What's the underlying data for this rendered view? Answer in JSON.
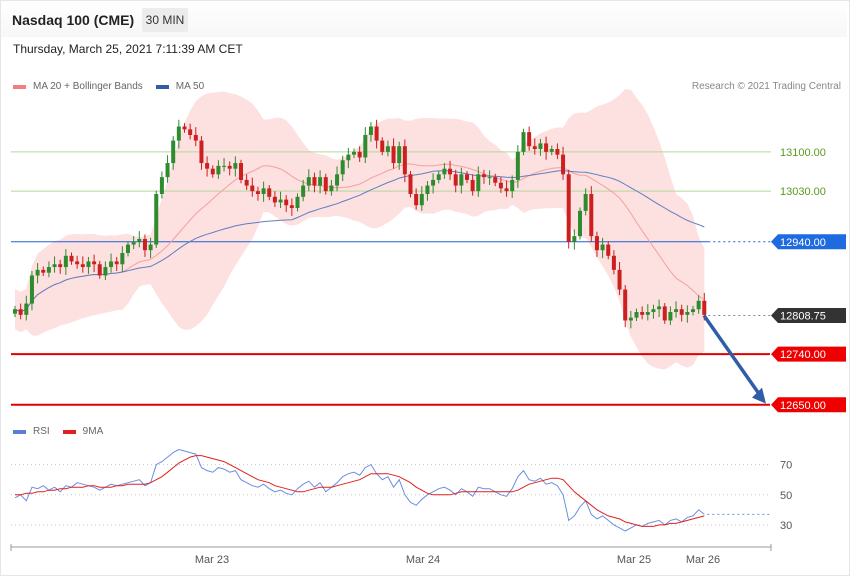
{
  "header": {
    "title": "Nasdaq 100 (CME)",
    "interval": "30 MIN",
    "timestamp": "Thursday, March 25, 2021 7:11:39 AM CET"
  },
  "legend": {
    "price": [
      {
        "name": "MA 20 + Bollinger Bands",
        "color": "#f08080"
      },
      {
        "name": "MA 50",
        "color": "#2f5da8"
      }
    ],
    "rsi": [
      {
        "name": "RSI",
        "color": "#5b7fd6"
      },
      {
        "name": "9MA",
        "color": "#e02020"
      }
    ]
  },
  "credit": "Research © 2021 Trading Central",
  "colors": {
    "up_candle": "#2e8b2e",
    "down_candle": "#cc1f1f",
    "band_fill": "#fde0e0",
    "target_line": "#b5d69a",
    "support_line": "#e00000",
    "pivot_line": "#2060d0",
    "arrow": "#2f5da8"
  },
  "chart_data": [
    {
      "type": "candlestick",
      "panel": "price",
      "x_labels": [
        "Mar 23",
        "Mar 24",
        "Mar 25",
        "Mar 26"
      ],
      "y_range": [
        12630,
        13210
      ],
      "levels": [
        {
          "value": 13100.0,
          "label": "13100.00",
          "kind": "target"
        },
        {
          "value": 13030.0,
          "label": "13030.00",
          "kind": "target"
        },
        {
          "value": 12940.0,
          "label": "12940.00",
          "kind": "pivot"
        },
        {
          "value": 12808.75,
          "label": "12808.75",
          "kind": "last"
        },
        {
          "value": 12740.0,
          "label": "12740.00",
          "kind": "support"
        },
        {
          "value": 12650.0,
          "label": "12650.00",
          "kind": "support"
        }
      ],
      "closes": [
        12820,
        12810,
        12830,
        12880,
        12890,
        12885,
        12895,
        12900,
        12895,
        12915,
        12905,
        12900,
        12895,
        12905,
        12900,
        12880,
        12895,
        12905,
        12900,
        12920,
        12935,
        12940,
        12945,
        12925,
        12935,
        13025,
        13055,
        13080,
        13120,
        13145,
        13140,
        13130,
        13120,
        13080,
        13070,
        13060,
        13075,
        13075,
        13070,
        13080,
        13050,
        13040,
        13030,
        13025,
        13035,
        13020,
        13010,
        13015,
        13005,
        13000,
        13020,
        13040,
        13055,
        13040,
        13055,
        13030,
        13040,
        13060,
        13085,
        13095,
        13100,
        13090,
        13130,
        13145,
        13120,
        13100,
        13110,
        13080,
        13110,
        13060,
        13025,
        13005,
        13025,
        13040,
        13050,
        13060,
        13070,
        13060,
        13040,
        13060,
        13050,
        13030,
        13060,
        13055,
        13055,
        13045,
        13035,
        13030,
        13050,
        13100,
        13135,
        13110,
        13105,
        13115,
        13100,
        13105,
        13095,
        13060,
        12940,
        12950,
        12995,
        13025,
        12950,
        12925,
        12935,
        12915,
        12890,
        12855,
        12800,
        12805,
        12815,
        12810,
        12815,
        12820,
        12825,
        12800,
        12815,
        12820,
        12810,
        12815,
        12820,
        12835,
        12810
      ]
    },
    {
      "type": "line",
      "panel": "rsi",
      "series": [
        {
          "name": "RSI"
        },
        {
          "name": "9MA"
        }
      ],
      "y_ticks": [
        70,
        50,
        30
      ],
      "y_range": [
        20,
        85
      ],
      "rsi": [
        48,
        50,
        46,
        55,
        54,
        56,
        53,
        55,
        52,
        56,
        55,
        58,
        57,
        56,
        55,
        53,
        55,
        57,
        56,
        57,
        58,
        59,
        60,
        56,
        58,
        70,
        72,
        75,
        78,
        80,
        79,
        78,
        77,
        68,
        66,
        65,
        68,
        67,
        65,
        66,
        60,
        58,
        56,
        55,
        57,
        54,
        52,
        53,
        51,
        50,
        54,
        57,
        59,
        55,
        58,
        52,
        55,
        58,
        62,
        64,
        65,
        63,
        68,
        70,
        64,
        60,
        62,
        55,
        60,
        50,
        45,
        43,
        47,
        50,
        52,
        54,
        55,
        53,
        50,
        54,
        52,
        49,
        55,
        54,
        54,
        52,
        50,
        49,
        54,
        62,
        66,
        60,
        59,
        61,
        57,
        58,
        56,
        50,
        33,
        36,
        42,
        46,
        37,
        34,
        36,
        33,
        30,
        28,
        26,
        28,
        30,
        29,
        31,
        32,
        33,
        30,
        33,
        34,
        32,
        35,
        36,
        40,
        37
      ],
      "ma": [
        50,
        50,
        51,
        51,
        52,
        52,
        53,
        53,
        54,
        54,
        55,
        55,
        55,
        56,
        56,
        55,
        55,
        55,
        56,
        56,
        57,
        57,
        57,
        57,
        58,
        60,
        62,
        65,
        68,
        71,
        73,
        75,
        76,
        76,
        75,
        74,
        73,
        72,
        70,
        68,
        66,
        64,
        62,
        60,
        59,
        58,
        56,
        55,
        54,
        53,
        52,
        52,
        53,
        54,
        55,
        55,
        55,
        56,
        57,
        58,
        59,
        60,
        62,
        64,
        64,
        64,
        64,
        63,
        62,
        60,
        58,
        55,
        53,
        51,
        50,
        50,
        50,
        50,
        51,
        52,
        52,
        52,
        52,
        52,
        52,
        52,
        52,
        52,
        52,
        53,
        55,
        57,
        58,
        59,
        60,
        61,
        61,
        60,
        56,
        52,
        49,
        46,
        43,
        40,
        38,
        36,
        35,
        34,
        32,
        31,
        30,
        29,
        29,
        29,
        30,
        30,
        31,
        31,
        32,
        33,
        34,
        35,
        36
      ]
    }
  ]
}
